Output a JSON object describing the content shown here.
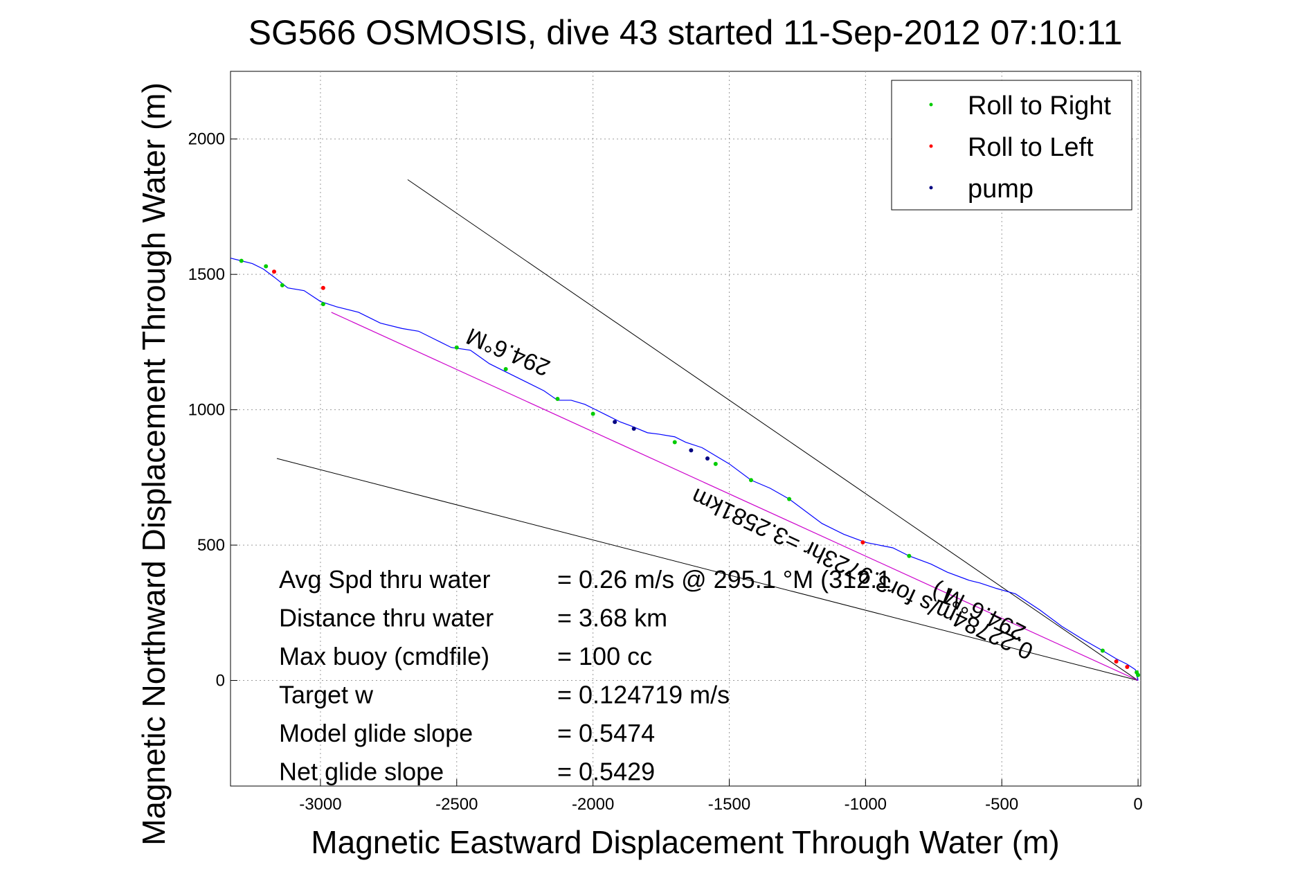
{
  "chart_data": {
    "type": "line",
    "title": "SG566 OSMOSIS, dive 43 started 11-Sep-2012 07:10:11",
    "xlabel": "Magnetic Eastward Displacement Through Water (m)",
    "ylabel": "Magnetic Northward Displacement Through Water (m)",
    "xlim": [
      -3330,
      10
    ],
    "ylim": [
      -390,
      2250
    ],
    "xticks": [
      -3000,
      -2500,
      -2000,
      -1500,
      -1000,
      -500,
      0
    ],
    "yticks": [
      0,
      500,
      1000,
      1500,
      2000
    ],
    "xtick_labels": [
      "-3000",
      "-2500",
      "-2000",
      "-1500",
      "-1000",
      "-500",
      "0"
    ],
    "ytick_labels": [
      "0",
      "500",
      "1000",
      "1500",
      "2000"
    ],
    "grid": true,
    "legend_position": "top-right",
    "colors": {
      "track": "#0000ff",
      "roll_right": "#00cc00",
      "roll_left": "#ff0000",
      "pump": "#000080",
      "avg_line": "#cc00cc",
      "cone": "#000000"
    },
    "legend": [
      {
        "label": "Roll to Right",
        "color": "#00cc00"
      },
      {
        "label": "Roll to Left",
        "color": "#ff0000"
      },
      {
        "label": "pump",
        "color": "#000080"
      }
    ],
    "series": [
      {
        "name": "track",
        "x": [
          0,
          -10,
          -40,
          -80,
          -130,
          -200,
          -280,
          -360,
          -450,
          -520,
          -580,
          -620,
          -700,
          -760,
          -840,
          -900,
          -950,
          -1000,
          -1080,
          -1160,
          -1280,
          -1350,
          -1420,
          -1500,
          -1550,
          -1600,
          -1660,
          -1700,
          -1760,
          -1800,
          -1860,
          -1900,
          -1950,
          -1990,
          -2030,
          -2080,
          -2130,
          -2180,
          -2250,
          -2320,
          -2380,
          -2450,
          -2520,
          -2580,
          -2640,
          -2700,
          -2780,
          -2860,
          -2940,
          -3000,
          -3060,
          -3120,
          -3170,
          -3210,
          -3250,
          -3290,
          -3330
        ],
        "y": [
          0,
          40,
          60,
          80,
          110,
          150,
          200,
          260,
          320,
          340,
          360,
          370,
          400,
          430,
          460,
          490,
          500,
          510,
          540,
          580,
          670,
          710,
          740,
          800,
          830,
          860,
          880,
          900,
          910,
          915,
          940,
          955,
          980,
          1000,
          1020,
          1035,
          1035,
          1070,
          1105,
          1140,
          1170,
          1220,
          1230,
          1260,
          1290,
          1300,
          1320,
          1360,
          1380,
          1400,
          1440,
          1450,
          1490,
          1520,
          1540,
          1550,
          1560
        ]
      },
      {
        "name": "Roll to Right",
        "x": [
          0,
          -5,
          -130,
          -840,
          -1280,
          -1420,
          -1550,
          -1700,
          -2000,
          -2130,
          -2320,
          -2500,
          -2990,
          -3140,
          -3200,
          -3290
        ],
        "y": [
          20,
          30,
          110,
          460,
          670,
          740,
          800,
          880,
          985,
          1040,
          1150,
          1230,
          1390,
          1460,
          1530,
          1550
        ]
      },
      {
        "name": "Roll to Left",
        "x": [
          -40,
          -80,
          -1010,
          -2990,
          -3170
        ],
        "y": [
          50,
          70,
          510,
          1450,
          1510
        ]
      },
      {
        "name": "pump",
        "x": [
          -1580,
          -1640,
          -1850,
          -1920
        ],
        "y": [
          820,
          850,
          930,
          955
        ]
      },
      {
        "name": "average heading",
        "x": [
          0,
          -2960
        ],
        "y": [
          0,
          1360
        ]
      },
      {
        "name": "cone upper",
        "x": [
          0,
          -2680
        ],
        "y": [
          0,
          1850
        ]
      },
      {
        "name": "cone lower",
        "x": [
          0,
          -3160
        ],
        "y": [
          0,
          820
        ]
      }
    ],
    "annotations": [
      {
        "text": "294.6°M",
        "x": -2300,
        "y": 1240,
        "rotate": 203
      },
      {
        "text": "0.22784m/s for3.9723hr =3.2581km",
        "x": -1000,
        "y": 420,
        "rotate": 205
      },
      {
        "text": "294.6°M",
        "x": -550,
        "y": 270,
        "rotate": 207
      },
      {
        "text": "°T)",
        "x": -690,
        "y": 340,
        "rotate": 200
      }
    ],
    "stats": [
      {
        "label": "Avg Spd thru water",
        "value": "=  0.26 m/s @ 295.1 °M (312.1"
      },
      {
        "label": "Distance thru water",
        "value": "=  3.68 km"
      },
      {
        "label": "Max buoy (cmdfile)",
        "value": "= 100 cc"
      },
      {
        "label": "Target w",
        "value": "= 0.124719 m/s"
      },
      {
        "label": "Model glide slope",
        "value": "= 0.5474"
      },
      {
        "label": "Net glide slope",
        "value": "= 0.5429"
      }
    ]
  }
}
